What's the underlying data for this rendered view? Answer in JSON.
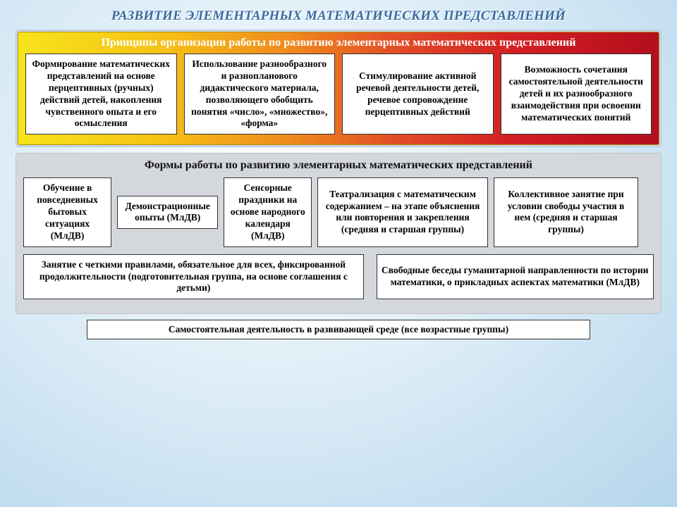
{
  "title": "РАЗВИТИЕ ЭЛЕМЕНТАРНЫХ МАТЕМАТИЧЕСКИХ ПРЕДСТАВЛЕНИЙ",
  "principles": {
    "heading": "Принципы организации работы по развитию элементарных математических представлений",
    "items": [
      "Формирование математических представлений на основе перцептивных (ручных) действий детей, накопления чувственного опыта и его осмысления",
      "Использование разнообразного и разнопланового дидактического материала, позволяющего обобщить понятия «число», «множество», «форма»",
      "Стимулирование активной речевой деятельности детей, речевое сопровождение перцептивных действий",
      "Возможность сочетания самостоятельной деятельности детей и их разнообразного взаимодействия при освоении математических понятий"
    ]
  },
  "forms": {
    "heading": "Формы работы по развитию элементарных математических представлений",
    "row1": [
      "Обучение в повседневных бытовых ситуациях (МлДВ)",
      "Демонстрационные опыты (МлДВ)",
      "Сенсорные праздники на основе народного календаря (МлДВ)",
      "Театрализация с математическим содержанием – на этапе объяснения или повторения и закрепления (средняя и старшая группы)",
      "Коллективное занятие при условии свободы участия в нем (средняя и старшая группы)"
    ],
    "row2": [
      "Занятие с четкими правилами, обязательное для всех, фиксированной продолжительности (подготовительная группа, на основе соглашения с детьми)",
      "Свободные беседы гуманитарной направленности по истории математики, о прикладных аспектах математики (МлДВ)"
    ]
  },
  "footer": "Самостоятельная деятельность в развивающей среде (все возрастные группы)"
}
